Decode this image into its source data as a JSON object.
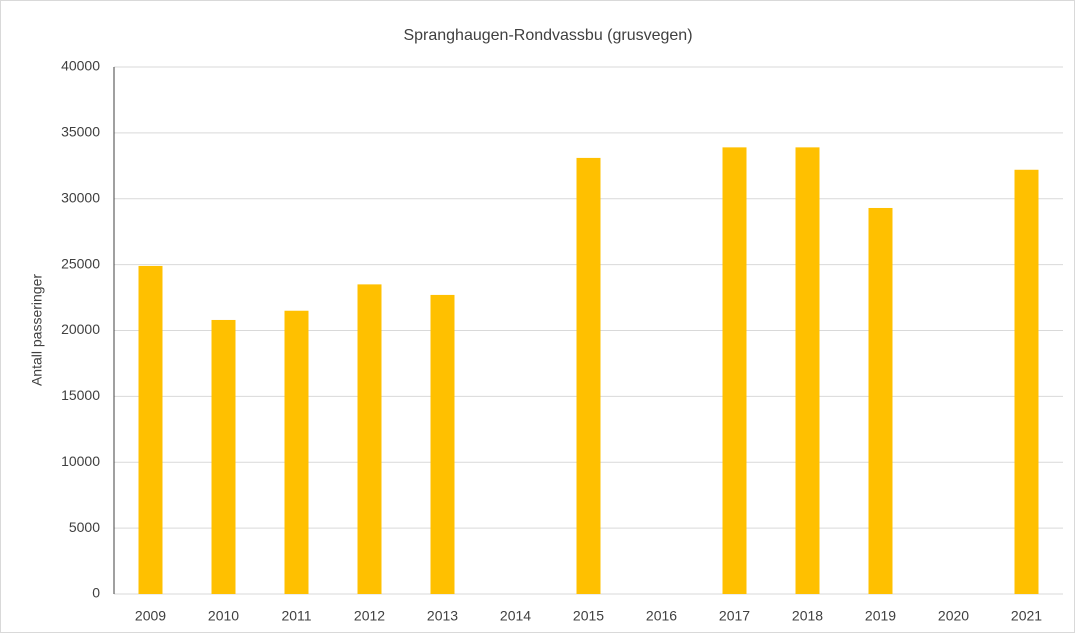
{
  "chart_data": {
    "type": "bar",
    "title": "Spranghaugen-Rondvassbu  (grusvegen)",
    "y_label": "Antall passeringer",
    "categories": [
      "2009",
      "2010",
      "2011",
      "2012",
      "2013",
      "2014",
      "2015",
      "2016",
      "2017",
      "2018",
      "2019",
      "2020",
      "2021"
    ],
    "values": [
      24900,
      20800,
      21500,
      23500,
      22700,
      null,
      33100,
      null,
      33900,
      33900,
      29300,
      null,
      32200
    ],
    "color": "#ffc000",
    "ylim": [
      0,
      40000
    ],
    "yticks": [
      0,
      5000,
      10000,
      15000,
      20000,
      25000,
      30000,
      35000,
      40000
    ],
    "grid": true
  }
}
